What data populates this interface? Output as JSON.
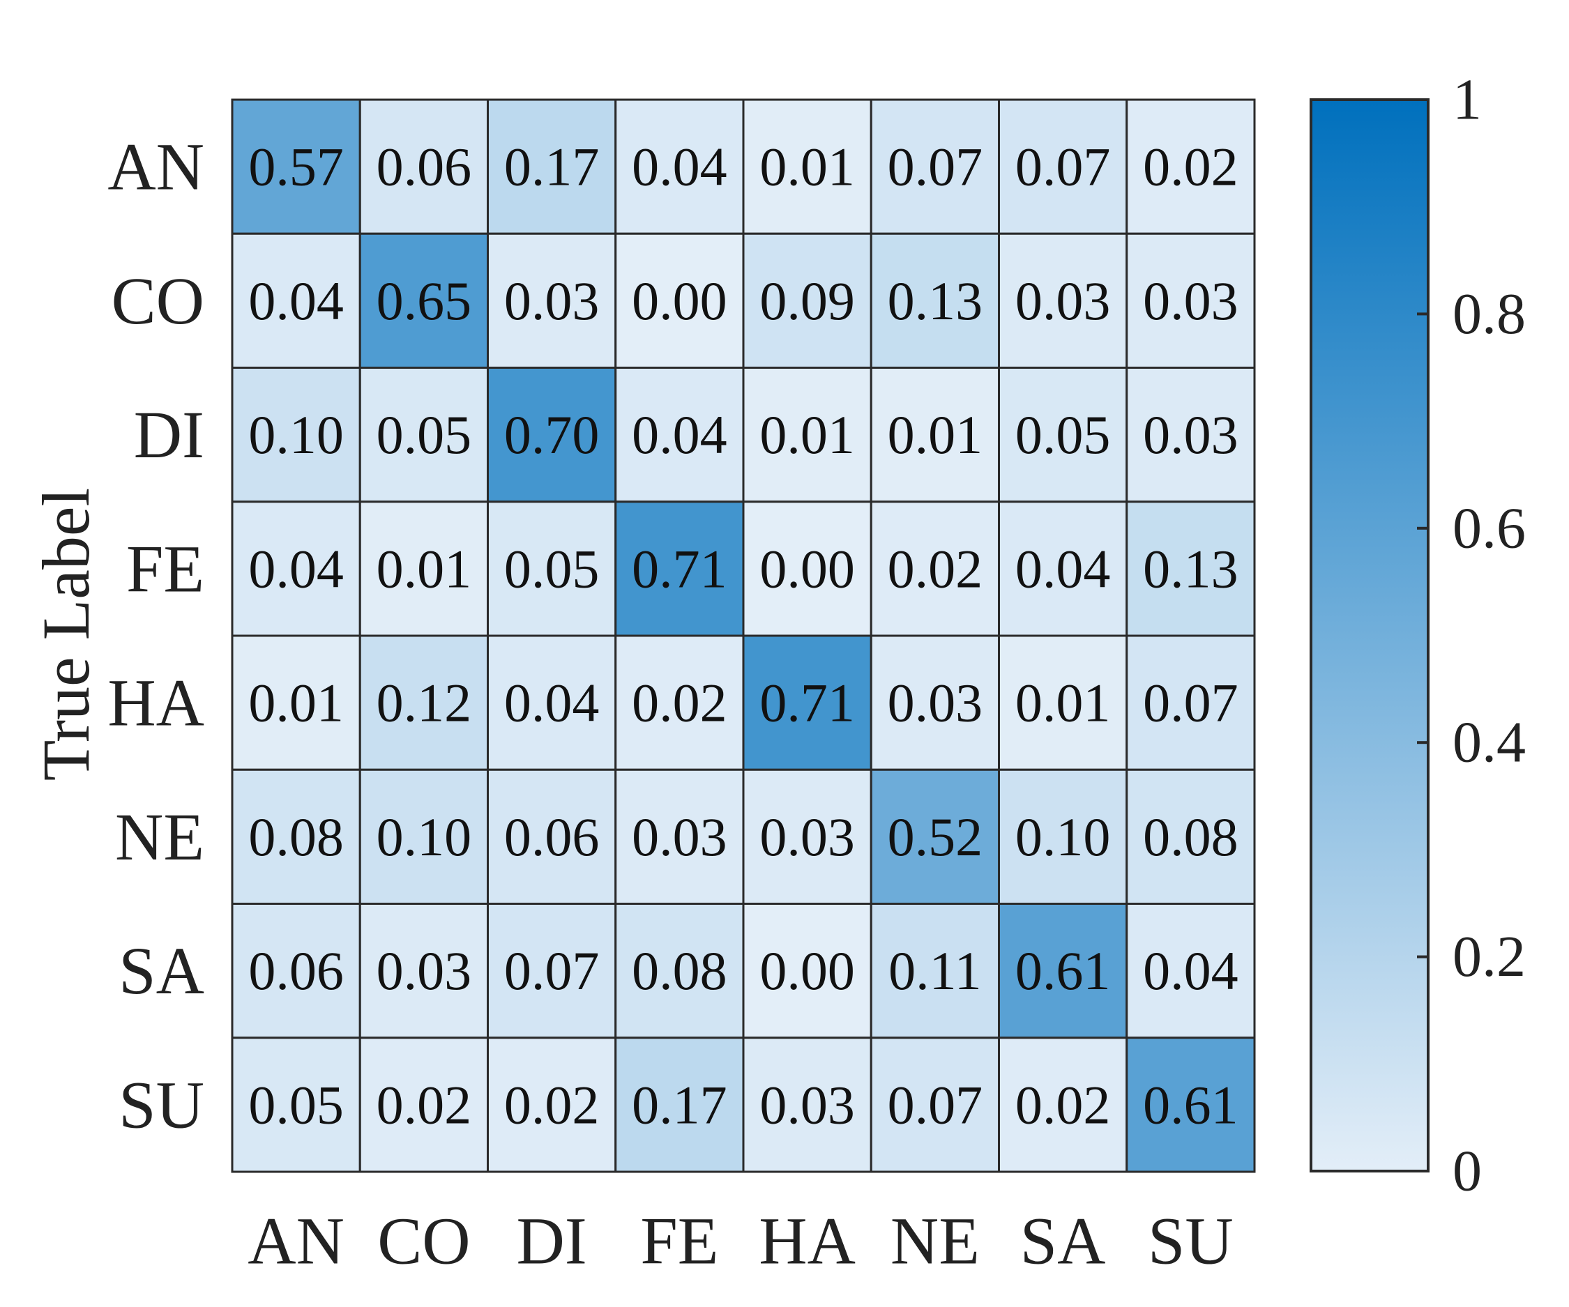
{
  "chart_data": {
    "type": "heatmap",
    "ylabel": "True Label",
    "xlabel": "",
    "x_categories": [
      "AN",
      "CO",
      "DI",
      "FE",
      "HA",
      "NE",
      "SA",
      "SU"
    ],
    "y_categories": [
      "AN",
      "CO",
      "DI",
      "FE",
      "HA",
      "NE",
      "SA",
      "SU"
    ],
    "values": [
      [
        0.57,
        0.06,
        0.17,
        0.04,
        0.01,
        0.07,
        0.07,
        0.02
      ],
      [
        0.04,
        0.65,
        0.03,
        0.0,
        0.09,
        0.13,
        0.03,
        0.03
      ],
      [
        0.1,
        0.05,
        0.7,
        0.04,
        0.01,
        0.01,
        0.05,
        0.03
      ],
      [
        0.04,
        0.01,
        0.05,
        0.71,
        0.0,
        0.02,
        0.04,
        0.13
      ],
      [
        0.01,
        0.12,
        0.04,
        0.02,
        0.71,
        0.03,
        0.01,
        0.07
      ],
      [
        0.08,
        0.1,
        0.06,
        0.03,
        0.03,
        0.52,
        0.1,
        0.08
      ],
      [
        0.06,
        0.03,
        0.07,
        0.08,
        0.0,
        0.11,
        0.61,
        0.04
      ],
      [
        0.05,
        0.02,
        0.02,
        0.17,
        0.03,
        0.07,
        0.02,
        0.61
      ]
    ],
    "colorbar": {
      "range": [
        0,
        1
      ],
      "ticks": [
        0,
        0.2,
        0.4,
        0.6,
        0.8,
        1
      ],
      "tick_labels": [
        "0",
        "0.2",
        "0.4",
        "0.6",
        "0.8",
        "1"
      ],
      "color_low": "#e3eef8",
      "color_high": "#0070bd"
    },
    "grid_color": "#2a2a2a"
  }
}
